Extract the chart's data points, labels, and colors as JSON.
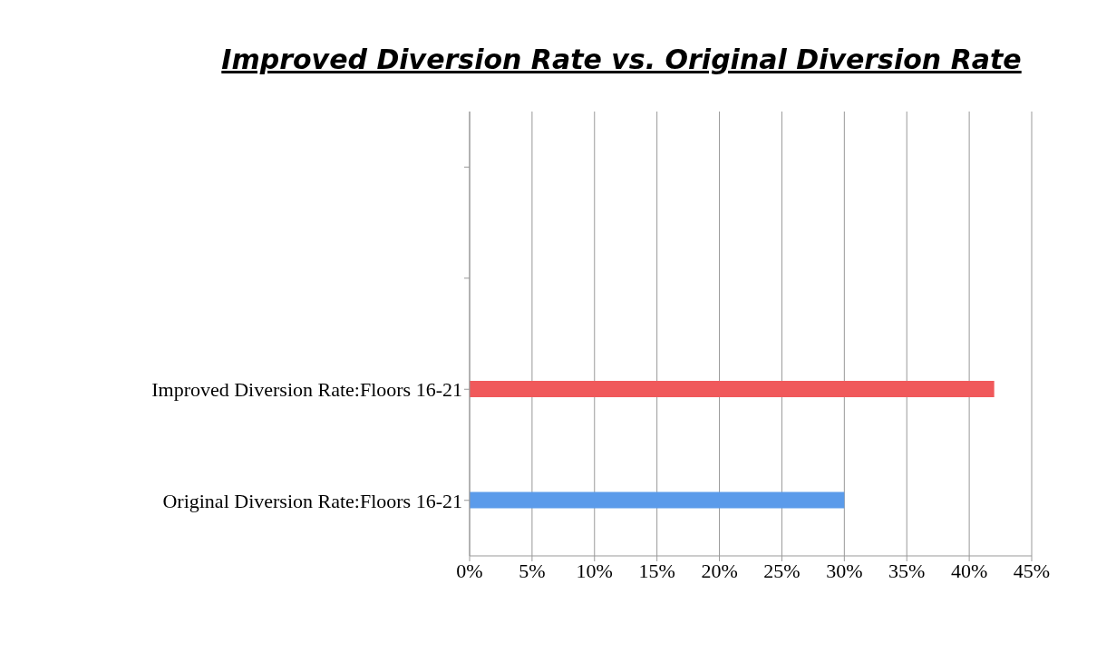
{
  "chart_data": {
    "type": "bar",
    "orientation": "horizontal",
    "title": "Improved Diversion Rate vs. Original Diversion Rate",
    "categories": [
      null,
      null,
      "Improved Diversion Rate:Floors 16-21",
      "Original Diversion Rate:Floors 16-21"
    ],
    "values": [
      null,
      null,
      42,
      30
    ],
    "colors": [
      "#f0595b",
      "#f0595b",
      "#f0595b",
      "#5b9bea"
    ],
    "xlim": [
      0,
      45
    ],
    "xticks": [
      {
        "value": 0,
        "label": "0%"
      },
      {
        "value": 5,
        "label": "5%"
      },
      {
        "value": 10,
        "label": "10%"
      },
      {
        "value": 15,
        "label": "15%"
      },
      {
        "value": 20,
        "label": "20%"
      },
      {
        "value": 25,
        "label": "25%"
      },
      {
        "value": 30,
        "label": "30%"
      },
      {
        "value": 35,
        "label": "35%"
      },
      {
        "value": 40,
        "label": "40%"
      },
      {
        "value": 45,
        "label": "45%"
      }
    ],
    "grid": "x",
    "legend": false
  }
}
